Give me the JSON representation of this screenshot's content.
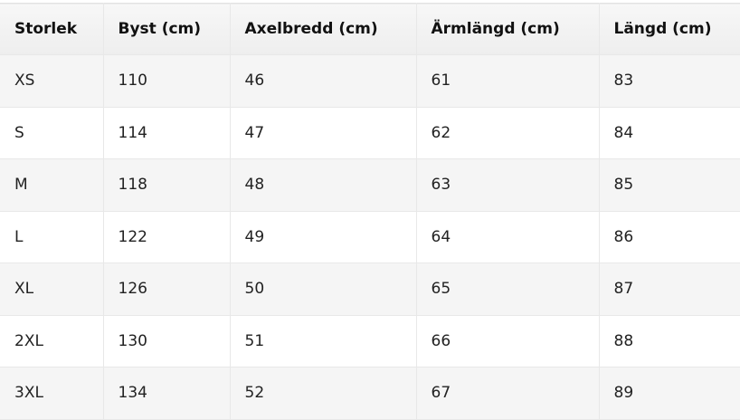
{
  "table": {
    "header": [
      "Storlek",
      "Byst (cm)",
      "Axelbredd (cm)",
      "Ärmlängd (cm)",
      "Längd (cm)"
    ],
    "rows": [
      [
        "XS",
        110,
        46,
        61,
        83
      ],
      [
        "S",
        114,
        47,
        62,
        84
      ],
      [
        "M",
        118,
        48,
        63,
        85
      ],
      [
        "L",
        122,
        49,
        64,
        86
      ],
      [
        "XL",
        126,
        50,
        65,
        87
      ],
      [
        "2XL",
        130,
        51,
        66,
        88
      ],
      [
        "3XL",
        134,
        52,
        67,
        89
      ]
    ]
  }
}
